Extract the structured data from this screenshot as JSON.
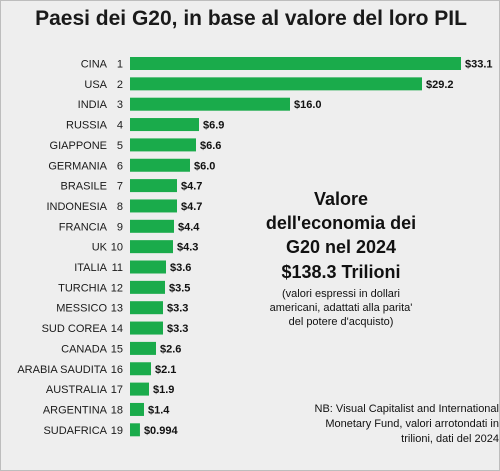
{
  "chart_data": {
    "type": "bar",
    "orientation": "horizontal",
    "title": "Paesi dei G20, in base al valore del loro PIL",
    "categories": [
      "CINA",
      "USA",
      "INDIA",
      "RUSSIA",
      "GIAPPONE",
      "GERMANIA",
      "BRASILE",
      "INDONESIA",
      "FRANCIA",
      "UK",
      "ITALIA",
      "TURCHIA",
      "MESSICO",
      "SUD COREA",
      "CANADA",
      "ARABIA SAUDITA",
      "AUSTRALIA",
      "ARGENTINA",
      "SUDAFRICA"
    ],
    "ranks": [
      "1",
      "2",
      "3",
      "4",
      "5",
      "6",
      "7",
      "8",
      "9",
      "10",
      "11",
      "12",
      "13",
      "14",
      "15",
      "16",
      "17",
      "18",
      "19"
    ],
    "values": [
      33.1,
      29.2,
      16.0,
      6.9,
      6.6,
      6.0,
      4.7,
      4.7,
      4.4,
      4.3,
      3.6,
      3.5,
      3.3,
      3.3,
      2.6,
      2.1,
      1.9,
      1.4,
      0.994
    ],
    "value_labels": [
      "$33.1",
      "$29.2",
      "$16.0",
      "$6.9",
      "$6.6",
      "$6.0",
      "$4.7",
      "$4.7",
      "$4.4",
      "$4.3",
      "$3.6",
      "$3.5",
      "$3.3",
      "$3.3",
      "$2.6",
      "$2.1",
      "$1.9",
      "$1.4",
      "$0.994"
    ],
    "xlim": [
      0,
      33.1
    ],
    "bar_color": "#1aab4b",
    "grid": false,
    "legend": "none"
  },
  "annotation": {
    "headline": "Valore\ndell'economia dei\nG20 nel 2024",
    "total": "$138.3 Trilioni",
    "subtitle": "(valori espressi in dollari\namericani, adattati alla parita'\ndel potere d'acquisto)"
  },
  "source_note": "NB: Visual Capitalist and International\nMonetary Fund, valori arrotondati in\ntrilioni, dati del 2024"
}
